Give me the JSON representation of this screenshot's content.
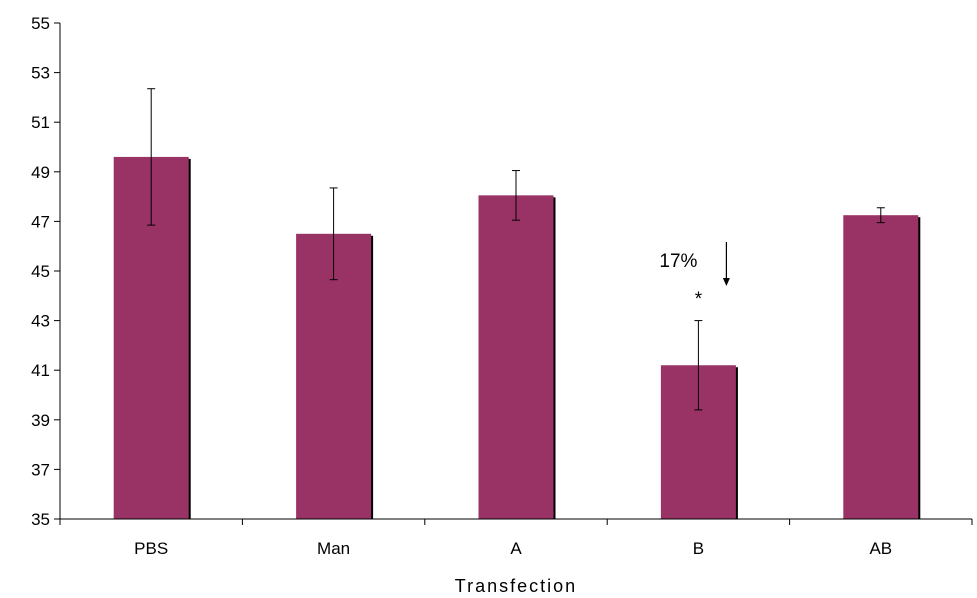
{
  "chart_data": {
    "type": "bar",
    "title": "",
    "xlabel": "Transfection",
    "ylabel": "",
    "categories": [
      "PBS",
      "Man",
      "A",
      "B",
      "AB"
    ],
    "values": [
      49.6,
      46.5,
      48.05,
      41.2,
      47.25
    ],
    "errors": [
      2.75,
      1.85,
      1.0,
      1.8,
      0.3
    ],
    "ylim": [
      35,
      55
    ],
    "yticks": [
      35,
      37,
      39,
      41,
      43,
      45,
      47,
      49,
      51,
      53,
      55
    ],
    "ytick_labels": [
      "35",
      "37",
      "39",
      "41",
      "43",
      "45",
      "47",
      "49",
      "51",
      "53",
      "55"
    ],
    "grid": false,
    "bar_color": "#993366",
    "annotations": [
      {
        "category": "B",
        "text": "17%"
      },
      {
        "category": "B",
        "text": "*"
      }
    ]
  }
}
